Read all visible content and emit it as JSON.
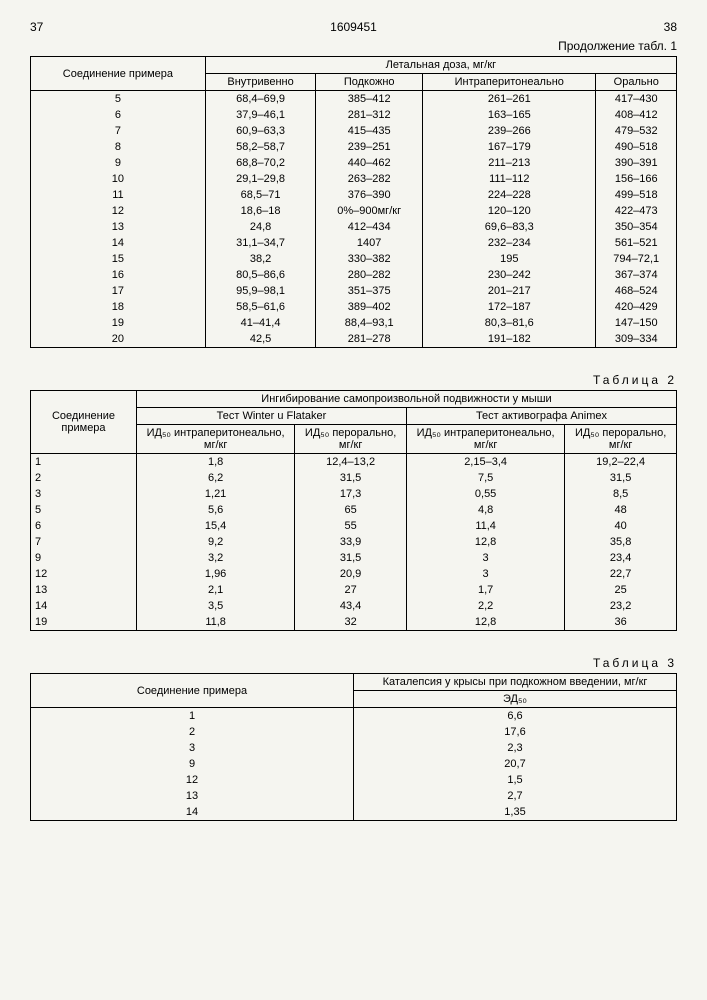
{
  "page_left": "37",
  "doc_number": "1609451",
  "page_right": "38",
  "continuation_text": "Продолжение табл. 1",
  "table1": {
    "group_header": "Летальная доза, мг/кг",
    "col1_header": "Соединение примера",
    "col2_header": "Внутривенно",
    "col3_header": "Подкожно",
    "col4_header": "Интраперитонеально",
    "col5_header": "Орально",
    "rows": [
      [
        "5",
        "68,4–69,9",
        "385–412",
        "261–261",
        "417–430"
      ],
      [
        "6",
        "37,9–46,1",
        "281–312",
        "163–165",
        "408–412"
      ],
      [
        "7",
        "60,9–63,3",
        "415–435",
        "239–266",
        "479–532"
      ],
      [
        "8",
        "58,2–58,7",
        "239–251",
        "167–179",
        "490–518"
      ],
      [
        "9",
        "68,8–70,2",
        "440–462",
        "211–213",
        "390–391"
      ],
      [
        "10",
        "29,1–29,8",
        "263–282",
        "111–112",
        "156–166"
      ],
      [
        "11",
        "68,5–71",
        "376–390",
        "224–228",
        "499–518"
      ],
      [
        "12",
        "18,6–18",
        "0%–900мг/кг",
        "120–120",
        "422–473"
      ],
      [
        "13",
        "24,8",
        "412–434",
        "69,6–83,3",
        "350–354"
      ],
      [
        "14",
        "31,1–34,7",
        "1407",
        "232–234",
        "561–521"
      ],
      [
        "15",
        "38,2",
        "330–382",
        "195",
        "794–72,1"
      ],
      [
        "16",
        "80,5–86,6",
        "280–282",
        "230–242",
        "367–374"
      ],
      [
        "17",
        "95,9–98,1",
        "351–375",
        "201–217",
        "468–524"
      ],
      [
        "18",
        "58,5–61,6",
        "389–402",
        "172–187",
        "420–429"
      ],
      [
        "19",
        "41–41,4",
        "88,4–93,1",
        "80,3–81,6",
        "147–150"
      ],
      [
        "20",
        "42,5",
        "281–278",
        "191–182",
        "309–334"
      ]
    ]
  },
  "table2_label": "Таблица 2",
  "table2": {
    "group_header": "Ингибирование самопроизвольной подвижности у мыши",
    "col1_header": "Соединение примера",
    "sub_header_a": "Тест Winter u Flataker",
    "sub_header_b": "Тест активографа Animex",
    "col2_header": "ИД₅₀ интраперитонеально, мг/кг",
    "col3_header": "ИД₅₀ перорально, мг/кг",
    "col4_header": "ИД₅₀ интраперитонеально, мг/кг",
    "col5_header": "ИД₅₀ перорально, мг/кг",
    "rows": [
      [
        "1",
        "1,8",
        "12,4–13,2",
        "2,15–3,4",
        "19,2–22,4"
      ],
      [
        "2",
        "6,2",
        "31,5",
        "7,5",
        "31,5"
      ],
      [
        "3",
        "1,21",
        "17,3",
        "0,55",
        "8,5"
      ],
      [
        "5",
        "5,6",
        "65",
        "4,8",
        "48"
      ],
      [
        "6",
        "15,4",
        "55",
        "11,4",
        "40"
      ],
      [
        "7",
        "9,2",
        "33,9",
        "12,8",
        "35,8"
      ],
      [
        "9",
        "3,2",
        "31,5",
        "3",
        "23,4"
      ],
      [
        "12",
        "1,96",
        "20,9",
        "3",
        "22,7"
      ],
      [
        "13",
        "2,1",
        "27",
        "1,7",
        "25"
      ],
      [
        "14",
        "3,5",
        "43,4",
        "2,2",
        "23,2"
      ],
      [
        "19",
        "11,8",
        "32",
        "12,8",
        "36"
      ]
    ]
  },
  "table3_label": "Таблица 3",
  "table3": {
    "col1_header": "Соединение примера",
    "col2_header": "Каталепсия у крысы при подкожном введении, мг/кг",
    "sub_header": "ЭД₅₀",
    "rows": [
      [
        "1",
        "6,6"
      ],
      [
        "2",
        "17,6"
      ],
      [
        "3",
        "2,3"
      ],
      [
        "9",
        "20,7"
      ],
      [
        "12",
        "1,5"
      ],
      [
        "13",
        "2,7"
      ],
      [
        "14",
        "1,35"
      ]
    ]
  }
}
